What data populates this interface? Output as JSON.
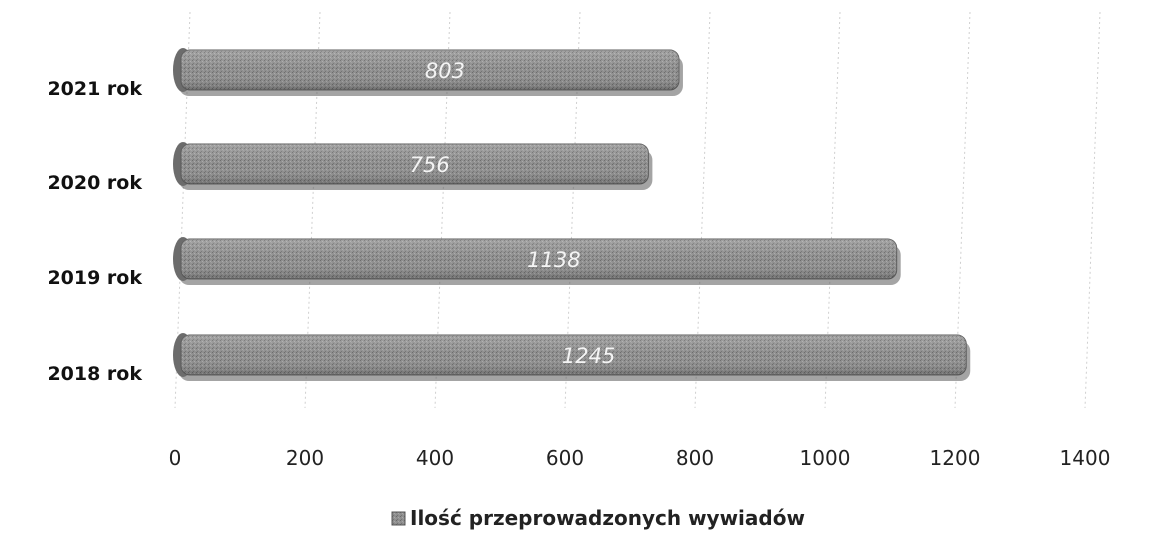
{
  "chart_data": {
    "type": "bar",
    "orientation": "horizontal",
    "categories": [
      "2021 rok",
      "2020 rok",
      "2019 rok",
      "2018 rok"
    ],
    "series": [
      {
        "name": "Ilość przeprowadzonych wywiadów",
        "values": [
          803,
          756,
          1138,
          1245
        ]
      }
    ],
    "xlim": [
      0,
      1400
    ],
    "xticks": [
      0,
      200,
      400,
      600,
      800,
      1000,
      1200,
      1400
    ],
    "legend": "bottom",
    "grid": true,
    "bar_color": "#8c8c8c"
  }
}
